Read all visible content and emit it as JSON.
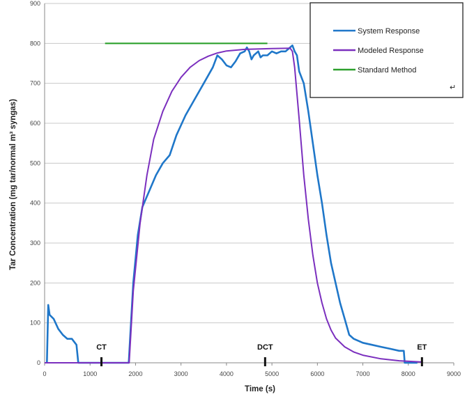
{
  "chart_data": {
    "type": "line",
    "xlabel": "Time (s)",
    "ylabel": "Tar Concentration (mg tar/normal m³ syngas)",
    "xlim": [
      0,
      9000
    ],
    "ylim": [
      0,
      900
    ],
    "x_ticks": [
      0,
      1000,
      2000,
      3000,
      4000,
      5000,
      6000,
      7000,
      8000,
      9000
    ],
    "y_ticks": [
      0,
      100,
      200,
      300,
      400,
      500,
      600,
      700,
      800,
      900
    ],
    "grid": "horizontal",
    "legend_position": "top-right",
    "legend_return_glyph": "↵",
    "series": [
      {
        "name": "System Response",
        "color": "#1f77c9",
        "points": [
          [
            50,
            0
          ],
          [
            80,
            145
          ],
          [
            110,
            120
          ],
          [
            200,
            110
          ],
          [
            300,
            85
          ],
          [
            400,
            70
          ],
          [
            500,
            60
          ],
          [
            600,
            60
          ],
          [
            700,
            45
          ],
          [
            740,
            0
          ],
          [
            1850,
            0
          ],
          [
            1880,
            60
          ],
          [
            1950,
            200
          ],
          [
            2050,
            320
          ],
          [
            2150,
            390
          ],
          [
            2300,
            430
          ],
          [
            2450,
            470
          ],
          [
            2600,
            500
          ],
          [
            2750,
            520
          ],
          [
            2900,
            570
          ],
          [
            3100,
            620
          ],
          [
            3300,
            660
          ],
          [
            3500,
            700
          ],
          [
            3700,
            740
          ],
          [
            3800,
            770
          ],
          [
            3900,
            760
          ],
          [
            4000,
            745
          ],
          [
            4100,
            740
          ],
          [
            4200,
            755
          ],
          [
            4300,
            775
          ],
          [
            4400,
            780
          ],
          [
            4450,
            790
          ],
          [
            4500,
            780
          ],
          [
            4550,
            760
          ],
          [
            4600,
            770
          ],
          [
            4700,
            780
          ],
          [
            4750,
            765
          ],
          [
            4800,
            770
          ],
          [
            4900,
            770
          ],
          [
            5000,
            780
          ],
          [
            5100,
            775
          ],
          [
            5200,
            780
          ],
          [
            5300,
            780
          ],
          [
            5400,
            790
          ],
          [
            5450,
            795
          ],
          [
            5500,
            780
          ],
          [
            5550,
            770
          ],
          [
            5600,
            730
          ],
          [
            5700,
            700
          ],
          [
            5800,
            630
          ],
          [
            5900,
            550
          ],
          [
            6000,
            470
          ],
          [
            6100,
            400
          ],
          [
            6200,
            320
          ],
          [
            6300,
            250
          ],
          [
            6400,
            200
          ],
          [
            6500,
            150
          ],
          [
            6600,
            110
          ],
          [
            6700,
            70
          ],
          [
            6800,
            60
          ],
          [
            7000,
            50
          ],
          [
            7200,
            45
          ],
          [
            7400,
            40
          ],
          [
            7600,
            35
          ],
          [
            7800,
            30
          ],
          [
            7900,
            30
          ],
          [
            7920,
            0
          ],
          [
            8200,
            0
          ]
        ]
      },
      {
        "name": "Modeled Response",
        "color": "#7b2fbe",
        "points": [
          [
            0,
            0
          ],
          [
            1860,
            0
          ],
          [
            1950,
            180
          ],
          [
            2100,
            350
          ],
          [
            2250,
            470
          ],
          [
            2400,
            560
          ],
          [
            2600,
            630
          ],
          [
            2800,
            680
          ],
          [
            3000,
            715
          ],
          [
            3200,
            740
          ],
          [
            3400,
            757
          ],
          [
            3600,
            768
          ],
          [
            3800,
            776
          ],
          [
            4000,
            781
          ],
          [
            4400,
            785
          ],
          [
            5000,
            787
          ],
          [
            5400,
            788
          ],
          [
            5450,
            780
          ],
          [
            5500,
            740
          ],
          [
            5600,
            610
          ],
          [
            5700,
            470
          ],
          [
            5800,
            360
          ],
          [
            5900,
            270
          ],
          [
            6000,
            200
          ],
          [
            6100,
            150
          ],
          [
            6200,
            110
          ],
          [
            6300,
            82
          ],
          [
            6400,
            62
          ],
          [
            6600,
            40
          ],
          [
            6800,
            27
          ],
          [
            7000,
            19
          ],
          [
            7400,
            10
          ],
          [
            7800,
            5
          ],
          [
            8300,
            2
          ]
        ]
      },
      {
        "name": "Standard Method",
        "color": "#2ca02c",
        "points": [
          [
            1330,
            800
          ],
          [
            4900,
            800
          ]
        ]
      }
    ],
    "markers": [
      {
        "label": "CT",
        "x": 1250
      },
      {
        "label": "DCT",
        "x": 4850
      },
      {
        "label": "ET",
        "x": 8300
      }
    ]
  }
}
